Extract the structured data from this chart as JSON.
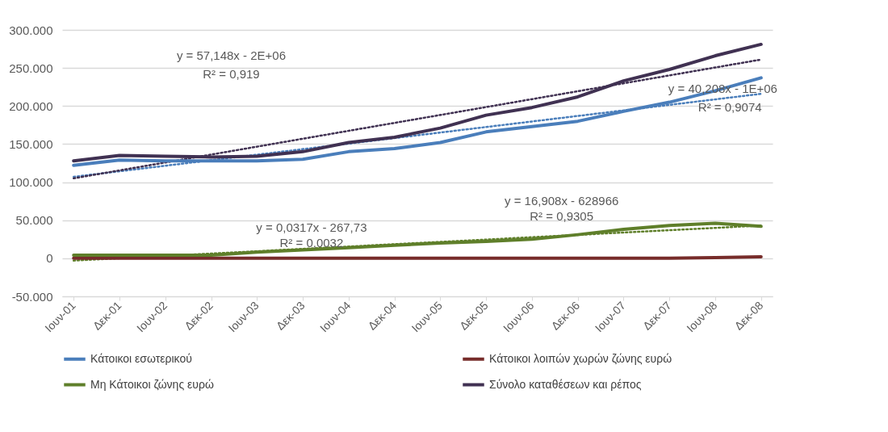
{
  "chart_data": {
    "type": "line",
    "categories": [
      "Ιουν-01",
      "Δεκ-01",
      "Ιουν-02",
      "Δεκ-02",
      "Ιουν-03",
      "Δεκ-03",
      "Ιουν-04",
      "Δεκ-04",
      "Ιουν-05",
      "Δεκ-05",
      "Ιουν-06",
      "Δεκ-06",
      "Ιουν-07",
      "Δεκ-07",
      "Ιουν-08",
      "Δεκ-08"
    ],
    "ylim": [
      -50000,
      300000
    ],
    "yticks": [
      {
        "value": -50000,
        "label": "-50.000"
      },
      {
        "value": 0,
        "label": "0"
      },
      {
        "value": 50000,
        "label": "50.000"
      },
      {
        "value": 100000,
        "label": "100.000"
      },
      {
        "value": 150000,
        "label": "150.000"
      },
      {
        "value": 200000,
        "label": "200.000"
      },
      {
        "value": 250000,
        "label": "250.000"
      },
      {
        "value": 300000,
        "label": "300.000"
      }
    ],
    "grid": "y",
    "legend": "bottom",
    "marker": "none",
    "line_style": "solid",
    "series": [
      {
        "name": "Κάτοικοι εσωτερικού",
        "color": "#4a7ebb",
        "values": [
          122000,
          129000,
          128000,
          128000,
          128000,
          130000,
          140000,
          144000,
          152000,
          166000,
          173000,
          180000,
          193000,
          205000,
          220000,
          237000
        ]
      },
      {
        "name": "Κάτοικοι λοιπών χωρών ζώνης ευρώ",
        "color": "#772c2a",
        "values": [
          0,
          0,
          0,
          0,
          0,
          0,
          0,
          0,
          0,
          0,
          0,
          0,
          0,
          0,
          1000,
          2000
        ]
      },
      {
        "name": "Μη Κάτοικοι ζώνης ευρώ",
        "color": "#5f7f2a",
        "values": [
          4000,
          4000,
          4000,
          4000,
          8000,
          11000,
          14000,
          17000,
          20000,
          22000,
          25000,
          31000,
          38000,
          43000,
          46000,
          42000
        ]
      },
      {
        "name": "Σύνολο καταθέσεων και ρέπος",
        "color": "#403152",
        "values": [
          128000,
          135000,
          134000,
          133000,
          134000,
          140000,
          152000,
          159000,
          171000,
          188000,
          198000,
          212000,
          233000,
          248000,
          266000,
          281000
        ]
      },
      {
        "type": "line",
        "line_style": "dotted",
        "color": "#4a7ebb",
        "x": [
          "Ιουν-01",
          "Δεκ-08"
        ],
        "values": [
          107000,
          216000
        ]
      },
      {
        "type": "line",
        "line_style": "dotted",
        "color": "#5f7f2a",
        "x": [
          "Ιουν-01",
          "Δεκ-08"
        ],
        "values": [
          -3000,
          43000
        ]
      },
      {
        "type": "line",
        "line_style": "dotted",
        "color": "#403152",
        "x": [
          "Ιουν-01",
          "Δεκ-08"
        ],
        "values": [
          105000,
          261000
        ]
      }
    ],
    "annotations": [
      "y = 57,148x - 2E+06",
      "R² = 0,919",
      "y = 40,208x - 1E+06",
      "R² = 0,9074",
      "y = 16,908x - 628966",
      "R² = 0,9305",
      "y = 0,0317x - 267,73",
      "R² = 0,0032"
    ]
  }
}
